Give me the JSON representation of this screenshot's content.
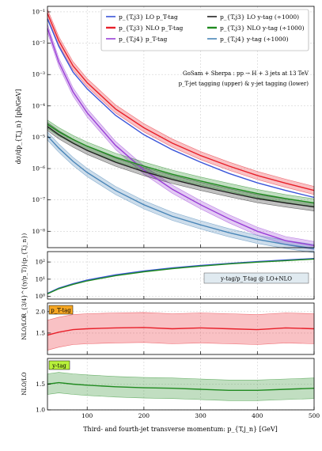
{
  "chart_data": [
    {
      "type": "line",
      "panel": "main",
      "yscale": "log",
      "xlim": [
        30,
        500
      ],
      "ylim": [
        3e-09,
        0.15
      ],
      "ylabel": "dσ/dp_{T,j_n} [pb/GeV]",
      "x": [
        30,
        50,
        75,
        100,
        150,
        200,
        250,
        300,
        350,
        400,
        450,
        500
      ],
      "x_ticks": [
        "100",
        "200",
        "300",
        "400",
        "500"
      ],
      "y_ticks": [
        "10⁻¹",
        "10⁻²",
        "10⁻³",
        "10⁻⁴",
        "10⁻⁵",
        "10⁻⁶",
        "10⁻⁷",
        "10⁻⁸"
      ],
      "annotation_line1": "GoSam + Sherpa : pp → H + 3 jets at 13 TeV",
      "annotation_line2": "p_T-jet tagging (upper) & y-jet tagging (lower)",
      "legend_position": "top-right",
      "series": [
        {
          "name": "p_{T,j3} LO p_T-tag",
          "color": "#3a55d9",
          "band": false,
          "values": [
            0.06,
            0.008,
            0.0012,
            0.00035,
            5e-05,
            1.2e-05,
            4e-06,
            1.6e-06,
            7e-07,
            3.5e-07,
            2e-07,
            1.2e-07
          ]
        },
        {
          "name": "p_{T,j3} NLO p_T-tag",
          "color": "#e8202a",
          "band": true,
          "values": [
            0.09,
            0.012,
            0.0019,
            0.00055,
            8e-05,
            2e-05,
            6.5e-06,
            2.6e-06,
            1.2e-06,
            6e-07,
            3.4e-07,
            2e-07
          ]
        },
        {
          "name": "p_{T,j4} p_T-tag",
          "color": "#9a3fd6",
          "band": true,
          "values": [
            0.03,
            0.0025,
            0.00028,
            6e-05,
            5.5e-06,
            9e-07,
            2.2e-07,
            7e-08,
            2.5e-08,
            1e-08,
            5e-09,
            3.5e-09
          ]
        },
        {
          "name": "p_{T,j3} LO y-tag (÷1000)",
          "color": "#222222",
          "band": true,
          "values": [
            2.2e-05,
            1.2e-05,
            6.5e-06,
            3.8e-06,
            1.6e-06,
            8e-07,
            4.5e-07,
            2.7e-07,
            1.7e-07,
            1.1e-07,
            8e-08,
            6e-08
          ]
        },
        {
          "name": "p_{T,j3} NLO y-tag (÷1000)",
          "color": "#1f8a1f",
          "band": true,
          "values": [
            2.6e-05,
            1.5e-05,
            8.5e-06,
            5.2e-06,
            2.3e-06,
            1.2e-06,
            6.6e-07,
            4e-07,
            2.5e-07,
            1.6e-07,
            1.1e-07,
            8e-08
          ]
        },
        {
          "name": "p_{T,j4} y-tag (÷1000)",
          "color": "#4a86b8",
          "band": true,
          "values": [
            1.1e-05,
            4.5e-06,
            1.7e-06,
            7.5e-07,
            2e-07,
            7e-08,
            3e-08,
            1.6e-08,
            9e-09,
            5.5e-09,
            3.8e-09,
            2.8e-09
          ]
        }
      ]
    },
    {
      "type": "line",
      "panel": "ratio-3-over-4",
      "yscale": "log",
      "xlim": [
        30,
        500
      ],
      "ylim": [
        0.7,
        400
      ],
      "ylabel": "R_{3/4}^{(y/p_T)}(p_{T,j_n})",
      "y_ticks": [
        "10⁰",
        "10¹",
        "10²"
      ],
      "annotation": "y-tag/p_T-tag @ LO+NLO",
      "x": [
        30,
        50,
        75,
        100,
        150,
        200,
        250,
        300,
        350,
        400,
        450,
        500
      ],
      "series": [
        {
          "name": "LO",
          "color": "#3a55d9",
          "values": [
            1.5,
            3,
            5.5,
            9,
            18,
            30,
            45,
            63,
            82,
            105,
            130,
            160
          ]
        },
        {
          "name": "NLO",
          "color": "#1f8a1f",
          "values": [
            1.4,
            2.8,
            5,
            8,
            16,
            27,
            41,
            58,
            77,
            98,
            120,
            148
          ]
        }
      ]
    },
    {
      "type": "line",
      "panel": "k-factor-pT-tag",
      "xlim": [
        30,
        500
      ],
      "ylim": [
        1.0,
        2.2
      ],
      "ylabel": "NLO/LO",
      "y_ticks": [
        "1.5",
        "2.0"
      ],
      "tag_label": "p_T-tag",
      "x": [
        30,
        50,
        75,
        100,
        150,
        200,
        250,
        300,
        350,
        400,
        450,
        500
      ],
      "series": [
        {
          "name": "p_T-tag",
          "color": "#e8202a",
          "band": true,
          "values": [
            1.45,
            1.52,
            1.58,
            1.6,
            1.62,
            1.63,
            1.6,
            1.62,
            1.6,
            1.58,
            1.62,
            1.6
          ]
        }
      ]
    },
    {
      "type": "line",
      "panel": "k-factor-y-tag",
      "xlim": [
        30,
        500
      ],
      "ylim": [
        1.0,
        2.0
      ],
      "ylabel": "NLO/LO",
      "y_ticks": [
        "1.0",
        "1.5"
      ],
      "tag_label": "y-tag",
      "xlabel": "Third- and fourth-jet transverse momentum: p_{T,j_n} [GeV]",
      "x": [
        30,
        50,
        75,
        100,
        150,
        200,
        250,
        300,
        350,
        400,
        450,
        500
      ],
      "series": [
        {
          "name": "y-tag",
          "color": "#1f8a1f",
          "band": true,
          "values": [
            1.5,
            1.53,
            1.5,
            1.48,
            1.45,
            1.43,
            1.42,
            1.4,
            1.38,
            1.38,
            1.4,
            1.42
          ]
        }
      ]
    }
  ]
}
